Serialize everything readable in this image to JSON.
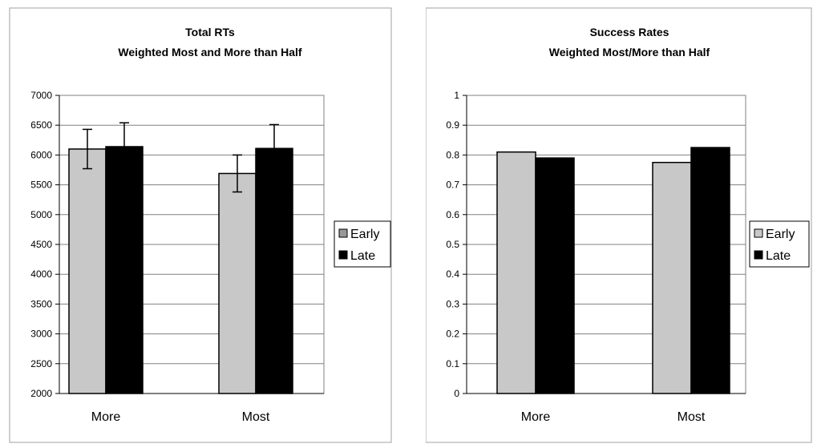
{
  "chart_data": [
    {
      "type": "bar",
      "title": "Total RTs",
      "subtitle": "Weighted Most and More than Half",
      "xlabel": "",
      "ylabel": "",
      "categories": [
        "More",
        "Most"
      ],
      "series": [
        {
          "name": "Early",
          "values": [
            6100,
            5690
          ],
          "error": [
            330,
            310
          ],
          "color": "#c8c8c8"
        },
        {
          "name": "Late",
          "values": [
            6140,
            6110
          ],
          "error": [
            400,
            400
          ],
          "color": "#000000"
        }
      ],
      "ylim": [
        2000,
        7000
      ],
      "yticks": [
        "2000",
        "2500",
        "3000",
        "3500",
        "4000",
        "4500",
        "5000",
        "5500",
        "6000",
        "6500",
        "7000"
      ],
      "grid": true,
      "legend_position": "right",
      "legend_swatch_early_color": "#999999"
    },
    {
      "type": "bar",
      "title": "Success Rates",
      "subtitle": "Weighted Most/More than Half",
      "xlabel": "",
      "ylabel": "",
      "categories": [
        "More",
        "Most"
      ],
      "series": [
        {
          "name": "Early",
          "values": [
            0.81,
            0.775
          ],
          "color": "#c8c8c8"
        },
        {
          "name": "Late",
          "values": [
            0.79,
            0.825
          ],
          "color": "#000000"
        }
      ],
      "ylim": [
        0,
        1
      ],
      "yticks": [
        "0",
        "0.1",
        "0.2",
        "0.3",
        "0.4",
        "0.5",
        "0.6",
        "0.7",
        "0.8",
        "0.9",
        "1"
      ],
      "grid": true,
      "legend_position": "right",
      "legend_swatch_early_color": "#c8c8c8"
    }
  ]
}
